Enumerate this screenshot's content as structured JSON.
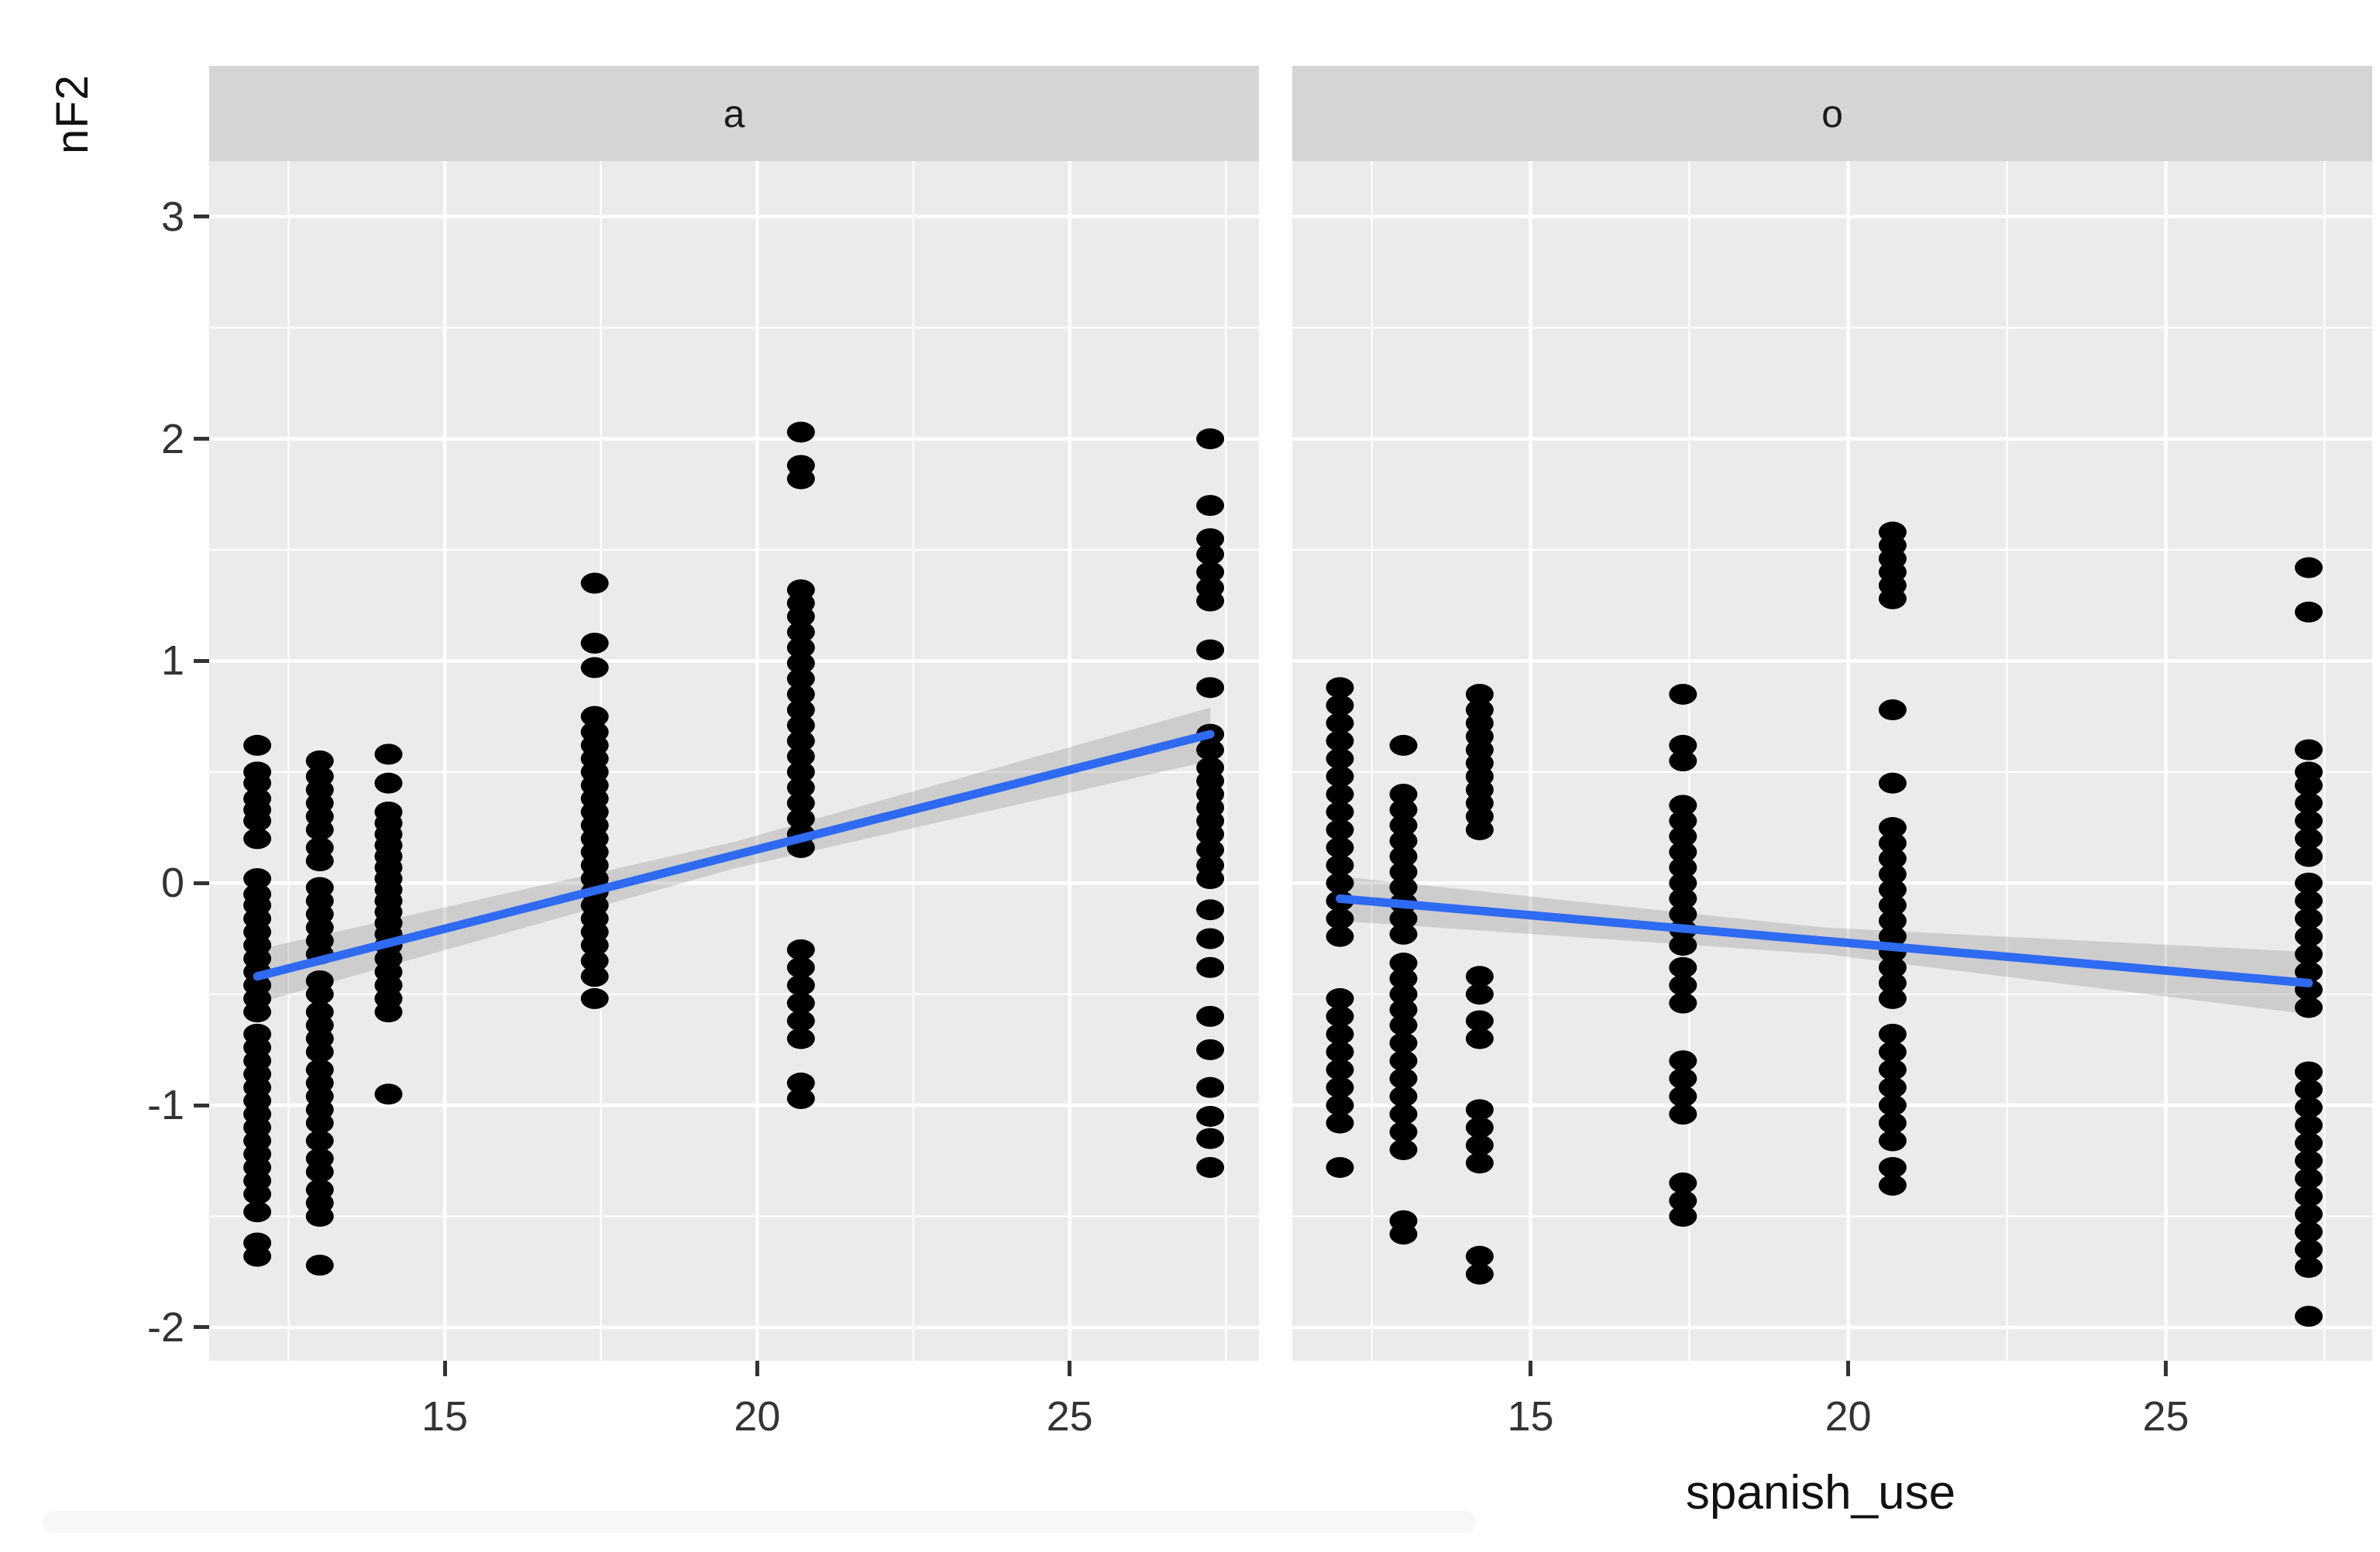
{
  "page": {
    "background": "#ffffff"
  },
  "axis": {
    "y_title": "nF2",
    "x_title": "spanish_use"
  },
  "colors": {
    "panel_bg": "#EBEBEB",
    "strip_bg": "#D5D5D5",
    "gridline": "#FFFFFF",
    "point": "#000000",
    "smooth_line": "#2E6BF2",
    "ci_band": "#8F8F8F",
    "axis_text": "#333333",
    "title_text": "#111111",
    "tick_mark": "#333333"
  },
  "chart_data": {
    "type": "scatter",
    "title": "",
    "xlabel": "spanish_use",
    "ylabel": "nF2",
    "grid": true,
    "legend_position": "none",
    "x_ticks": [
      15,
      20,
      25
    ],
    "x_minor_gridlines": [
      12.5,
      17.5,
      22.5,
      27.5
    ],
    "y_ticks": [
      3,
      2,
      1,
      0,
      -1,
      -2
    ],
    "y_minor_gridlines": [
      2.5,
      1.5,
      0.5,
      -0.5,
      -1.5
    ],
    "ylim": [
      -2.15,
      3.25
    ],
    "facets": [
      {
        "label": "a",
        "xlim": [
          11.23,
          28.03
        ],
        "columns": [
          {
            "x": 12,
            "values": [
              0.62,
              0.5,
              0.45,
              0.38,
              0.33,
              0.28,
              0.2,
              0.02,
              -0.05,
              -0.1,
              -0.16,
              -0.22,
              -0.28,
              -0.34,
              -0.4,
              -0.46,
              -0.52,
              -0.58,
              -0.68,
              -0.74,
              -0.8,
              -0.86,
              -0.92,
              -0.98,
              -1.04,
              -1.1,
              -1.16,
              -1.22,
              -1.28,
              -1.34,
              -1.4,
              -1.48,
              -1.62,
              -1.68
            ]
          },
          {
            "x": 13,
            "values": [
              0.55,
              0.48,
              0.42,
              0.36,
              0.3,
              0.24,
              0.16,
              0.1,
              -0.02,
              -0.08,
              -0.14,
              -0.2,
              -0.26,
              -0.32,
              -0.44,
              -0.5,
              -0.58,
              -0.64,
              -0.7,
              -0.76,
              -0.84,
              -0.9,
              -0.96,
              -1.02,
              -1.08,
              -1.16,
              -1.24,
              -1.3,
              -1.38,
              -1.44,
              -1.5,
              -1.72
            ]
          },
          {
            "x": 14.1,
            "values": [
              0.58,
              0.45,
              0.32,
              0.27,
              0.22,
              0.17,
              0.12,
              0.07,
              0.02,
              -0.03,
              -0.08,
              -0.13,
              -0.18,
              -0.23,
              -0.28,
              -0.34,
              -0.4,
              -0.46,
              -0.52,
              -0.58,
              -0.95
            ]
          },
          {
            "x": 17.4,
            "values": [
              1.35,
              1.08,
              0.97,
              0.75,
              0.68,
              0.62,
              0.56,
              0.5,
              0.44,
              0.38,
              0.32,
              0.26,
              0.2,
              0.14,
              0.08,
              0.02,
              -0.04,
              -0.1,
              -0.16,
              -0.22,
              -0.28,
              -0.35,
              -0.42,
              -0.52
            ]
          },
          {
            "x": 20.7,
            "values": [
              2.03,
              1.88,
              1.82,
              1.32,
              1.26,
              1.2,
              1.13,
              1.06,
              0.99,
              0.92,
              0.85,
              0.78,
              0.71,
              0.64,
              0.57,
              0.5,
              0.43,
              0.36,
              0.29,
              0.22,
              0.16,
              -0.3,
              -0.38,
              -0.46,
              -0.54,
              -0.62,
              -0.7,
              -0.9,
              -0.97
            ]
          },
          {
            "x": 27.25,
            "values": [
              2.0,
              1.7,
              1.55,
              1.48,
              1.4,
              1.33,
              1.27,
              1.05,
              0.88,
              0.67,
              0.6,
              0.52,
              0.46,
              0.4,
              0.34,
              0.28,
              0.22,
              0.15,
              0.08,
              0.02,
              -0.12,
              -0.25,
              -0.38,
              -0.6,
              -0.75,
              -0.92,
              -1.05,
              -1.15,
              -1.28
            ]
          }
        ],
        "smooth": {
          "x": [
            12,
            27.25
          ],
          "y": [
            -0.42,
            0.67
          ],
          "ci_halfwidth": [
            0.12,
            0.06,
            0.12
          ]
        }
      },
      {
        "label": "o",
        "xlim": [
          11.25,
          28.25
        ],
        "columns": [
          {
            "x": 12,
            "values": [
              0.88,
              0.8,
              0.72,
              0.64,
              0.56,
              0.48,
              0.4,
              0.32,
              0.24,
              0.16,
              0.08,
              0.0,
              -0.08,
              -0.16,
              -0.24,
              -0.52,
              -0.6,
              -0.68,
              -0.76,
              -0.84,
              -0.92,
              -1.0,
              -1.08,
              -1.28
            ]
          },
          {
            "x": 13,
            "values": [
              0.62,
              0.4,
              0.33,
              0.26,
              0.19,
              0.12,
              0.05,
              -0.02,
              -0.09,
              -0.16,
              -0.23,
              -0.36,
              -0.43,
              -0.5,
              -0.57,
              -0.64,
              -0.72,
              -0.8,
              -0.88,
              -0.96,
              -1.04,
              -1.12,
              -1.2,
              -1.52,
              -1.58
            ]
          },
          {
            "x": 14.2,
            "values": [
              0.85,
              0.78,
              0.72,
              0.66,
              0.6,
              0.54,
              0.48,
              0.42,
              0.36,
              0.3,
              0.24,
              -0.42,
              -0.5,
              -0.62,
              -0.7,
              -1.02,
              -1.1,
              -1.18,
              -1.26,
              -1.68,
              -1.76
            ]
          },
          {
            "x": 17.4,
            "values": [
              0.85,
              0.62,
              0.55,
              0.35,
              0.28,
              0.21,
              0.14,
              0.07,
              0.0,
              -0.07,
              -0.14,
              -0.21,
              -0.28,
              -0.38,
              -0.46,
              -0.54,
              -0.8,
              -0.88,
              -0.96,
              -1.04,
              -1.35,
              -1.43,
              -1.5
            ]
          },
          {
            "x": 20.7,
            "values": [
              1.58,
              1.52,
              1.46,
              1.4,
              1.34,
              1.28,
              0.78,
              0.45,
              0.25,
              0.18,
              0.11,
              0.04,
              -0.03,
              -0.1,
              -0.17,
              -0.24,
              -0.31,
              -0.38,
              -0.45,
              -0.52,
              -0.68,
              -0.76,
              -0.84,
              -0.92,
              -1.0,
              -1.08,
              -1.16,
              -1.28,
              -1.36
            ]
          },
          {
            "x": 27.25,
            "values": [
              1.42,
              1.22,
              0.6,
              0.5,
              0.44,
              0.36,
              0.28,
              0.2,
              0.12,
              0.0,
              -0.08,
              -0.16,
              -0.24,
              -0.32,
              -0.4,
              -0.48,
              -0.56,
              -0.85,
              -0.93,
              -1.01,
              -1.09,
              -1.17,
              -1.25,
              -1.33,
              -1.41,
              -1.49,
              -1.57,
              -1.65,
              -1.73,
              -1.95
            ]
          }
        ],
        "smooth": {
          "x": [
            12,
            27.25
          ],
          "y": [
            -0.07,
            -0.45
          ],
          "ci_halfwidth": [
            0.1,
            0.06,
            0.14
          ]
        }
      }
    ]
  }
}
